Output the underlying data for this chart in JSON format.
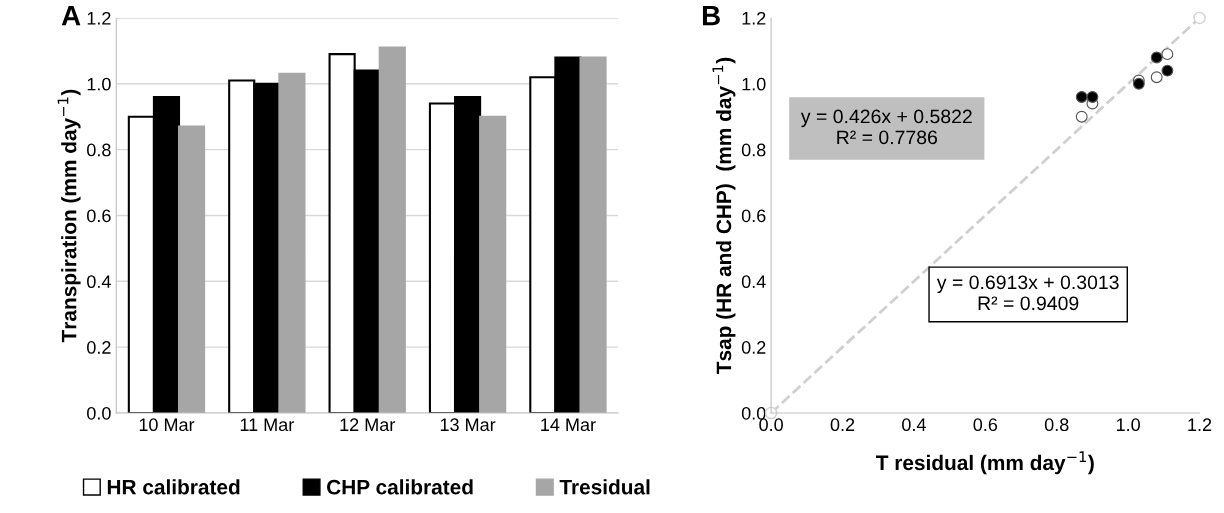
{
  "chart_data": [
    {
      "type": "bar",
      "title": "A",
      "ylabel": "Transpiration (mm day$^{−1}$)",
      "categories": [
        "10 Mar",
        "11 Mar",
        "12 Mar",
        "13 Mar",
        "14 Mar"
      ],
      "series": [
        {
          "name": "HR calibrated",
          "color": "#ffffff",
          "values": [
            0.9,
            1.01,
            1.09,
            0.94,
            1.02
          ]
        },
        {
          "name": "CHP calibrated",
          "color": "#000000",
          "values": [
            0.96,
            1.0,
            1.04,
            0.96,
            1.08
          ]
        },
        {
          "name": "Tresidual",
          "color": "#a6a6a6",
          "values": [
            0.87,
            1.03,
            1.11,
            0.9,
            1.08
          ]
        }
      ],
      "ylim": [
        0,
        1.2
      ],
      "yticks": [
        {
          "value": 0,
          "label": "0.0"
        },
        {
          "value": 0.2,
          "label": "0.2"
        },
        {
          "value": 0.4,
          "label": "0.4"
        },
        {
          "value": 0.6,
          "label": "0.6"
        },
        {
          "value": 0.8,
          "label": "0.8"
        },
        {
          "value": 1.0,
          "label": "1.0"
        },
        {
          "value": 1.2,
          "label": "1.2"
        }
      ],
      "grid": "y",
      "legend": "bottom"
    },
    {
      "type": "scatter",
      "title": "B",
      "xlabel": "T residual (mm day$^{−1}$)",
      "ylabel": "Tsap (HR and CHP)  (mm day$^{−1}$)",
      "series": [
        {
          "type": "line",
          "color": "#d0d0d0",
          "line_style": "dashed",
          "marker": "circle",
          "x": [
            0,
            1.2
          ],
          "values": [
            0,
            1.2
          ]
        },
        {
          "color": "#ffffff",
          "marker": "circle",
          "x": [
            0.87,
            1.03,
            1.11,
            0.9,
            1.08
          ],
          "values": [
            0.9,
            1.01,
            1.09,
            0.94,
            1.02
          ]
        },
        {
          "color": "#000000",
          "marker": "circle",
          "x": [
            0.87,
            1.03,
            1.11,
            0.9,
            1.08
          ],
          "values": [
            0.96,
            1.0,
            1.04,
            0.96,
            1.08
          ]
        }
      ],
      "xlim": [
        0,
        1.2
      ],
      "ylim": [
        0,
        1.2
      ],
      "xticks": [
        {
          "value": 0,
          "label": "0.0"
        },
        {
          "value": 0.2,
          "label": "0.2"
        },
        {
          "value": 0.4,
          "label": "0.4"
        },
        {
          "value": 0.6,
          "label": "0.6"
        },
        {
          "value": 0.8,
          "label": "0.8"
        },
        {
          "value": 1.0,
          "label": "1.0"
        },
        {
          "value": 1.2,
          "label": "1.2"
        }
      ],
      "yticks": [
        {
          "value": 0,
          "label": "0.0"
        },
        {
          "value": 0.2,
          "label": "0.2"
        },
        {
          "value": 0.4,
          "label": "0.4"
        },
        {
          "value": 0.6,
          "label": "0.6"
        },
        {
          "value": 0.8,
          "label": "0.8"
        },
        {
          "value": 1.0,
          "label": "1.0"
        },
        {
          "value": 1.2,
          "label": "1.2"
        }
      ],
      "annotations": [
        "y = 0.426x + 0.5822\nR² = 0.7786",
        "y = 0.6913x + 0.3013\nR² = 0.9409"
      ],
      "grid": false
    }
  ]
}
